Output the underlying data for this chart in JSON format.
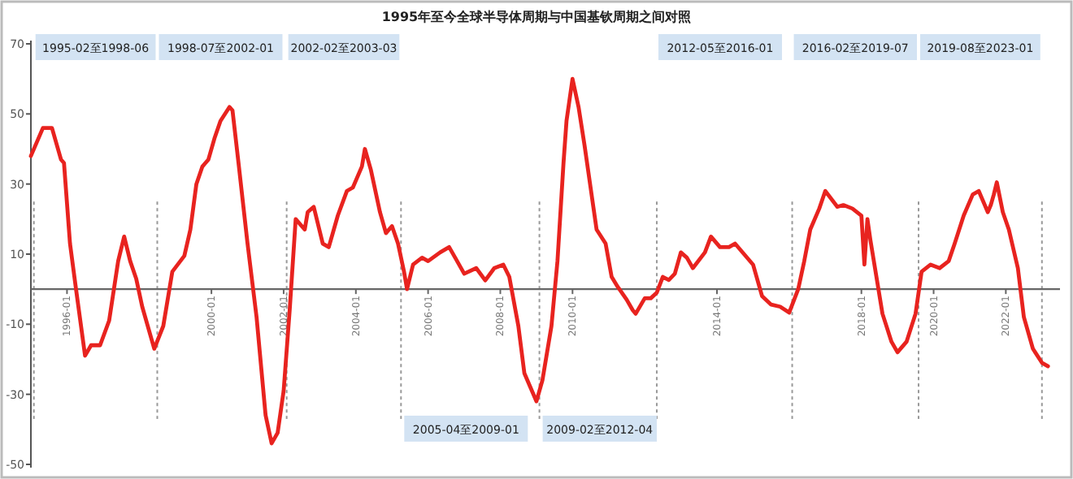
{
  "chart_data": {
    "type": "line",
    "title": "1995年至今全球半导体周期与中国基钦周期之间对照",
    "x": [
      "1995-01",
      "1995-05",
      "1995-08",
      "1995-11",
      "1995-12",
      "1996-02",
      "1996-04",
      "1996-07",
      "1996-09",
      "1996-12",
      "1997-03",
      "1997-06",
      "1997-08",
      "1997-10",
      "1997-12",
      "1998-02",
      "1998-06",
      "1998-09",
      "1998-12",
      "1999-04",
      "1999-06",
      "1999-08",
      "1999-10",
      "1999-12",
      "2000-02",
      "2000-04",
      "2000-07",
      "2000-08",
      "2000-10",
      "2001-01",
      "2001-04",
      "2001-07",
      "2001-09",
      "2001-11",
      "2002-01",
      "2002-03",
      "2002-05",
      "2002-08",
      "2002-09",
      "2002-11",
      "2003-02",
      "2003-04",
      "2003-07",
      "2003-10",
      "2003-12",
      "2004-03",
      "2004-04",
      "2004-06",
      "2004-09",
      "2004-11",
      "2005-01",
      "2005-03",
      "2005-05",
      "2005-06",
      "2005-08",
      "2005-11",
      "2006-01",
      "2006-05",
      "2006-08",
      "2006-10",
      "2007-01",
      "2007-05",
      "2007-08",
      "2007-11",
      "2008-02",
      "2008-04",
      "2008-07",
      "2008-09",
      "2009-01",
      "2009-03",
      "2009-06",
      "2009-08",
      "2009-10",
      "2009-11",
      "2010-01",
      "2010-03",
      "2010-05",
      "2010-07",
      "2010-09",
      "2010-12",
      "2011-02",
      "2011-04",
      "2011-07",
      "2011-09",
      "2011-10",
      "2012-01",
      "2012-03",
      "2012-05",
      "2012-07",
      "2012-09",
      "2012-11",
      "2013-01",
      "2013-03",
      "2013-05",
      "2013-09",
      "2013-11",
      "2014-02",
      "2014-05",
      "2014-07",
      "2014-10",
      "2015-01",
      "2015-04",
      "2015-07",
      "2015-10",
      "2016-01",
      "2016-04",
      "2016-06",
      "2016-08",
      "2016-11",
      "2017-01",
      "2017-05",
      "2017-07",
      "2017-10",
      "2018-01",
      "2018-02",
      "2018-03",
      "2018-04",
      "2018-06",
      "2018-08",
      "2018-11",
      "2019-01",
      "2019-04",
      "2019-07",
      "2019-09",
      "2019-12",
      "2020-03",
      "2020-06",
      "2020-08",
      "2020-11",
      "2021-02",
      "2021-04",
      "2021-07",
      "2021-08",
      "2021-09",
      "2021-10",
      "2021-12",
      "2022-02",
      "2022-05",
      "2022-07",
      "2022-10",
      "2023-01",
      "2023-03"
    ],
    "series": [
      {
        "color": "#e8231f",
        "values": [
          38,
          46,
          46,
          37,
          36,
          13,
          0,
          -19,
          -16,
          -16,
          -9,
          8,
          15,
          8,
          3,
          -5,
          -17,
          -10.5,
          5,
          9.5,
          17,
          30,
          35,
          37,
          43,
          48,
          52,
          51,
          36,
          13,
          -8,
          -36,
          -44,
          -41,
          -29,
          -6,
          20,
          17,
          22,
          23.5,
          13,
          12,
          21,
          28,
          29,
          35,
          40,
          34,
          22,
          16,
          18,
          13,
          5,
          0,
          7,
          9,
          8,
          10.5,
          12,
          9,
          4.4,
          6,
          2.5,
          6,
          7,
          3.5,
          -10.5,
          -24,
          -32,
          -26,
          -10.5,
          8,
          36,
          48,
          60,
          52,
          41,
          29,
          17,
          13,
          3.5,
          0.7,
          -3,
          -6,
          -7,
          -2.6,
          -2.6,
          -1,
          3.5,
          2.6,
          4.4,
          10.5,
          9,
          6,
          10.5,
          15,
          12,
          12,
          13,
          10,
          7,
          -2,
          -4.4,
          -5,
          -6.7,
          0,
          8,
          17,
          23,
          28,
          23.5,
          24,
          23,
          21,
          7,
          20,
          14,
          3.5,
          -7,
          -15,
          -18,
          -15,
          -7,
          5,
          7,
          6,
          8,
          13,
          21,
          27,
          28,
          22,
          24,
          27,
          30.5,
          22,
          17,
          6,
          -8,
          -17,
          -21,
          -22
        ]
      }
    ],
    "xlim": [
      "1995-01",
      "2023-07"
    ],
    "ylim": [
      -50,
      70
    ],
    "yticks": [
      70,
      50,
      30,
      10,
      -10,
      -30,
      -50
    ],
    "xticks": [
      "1996-01",
      "2000-01",
      "2002-01",
      "2004-01",
      "2006-01",
      "2008-01",
      "2010-01",
      "2014-01",
      "2018-01",
      "2020-01",
      "2022-01"
    ],
    "grid": false,
    "marker": "none",
    "line_style": "solid",
    "ref_lines": [
      {
        "axis": "x",
        "value": "1995-02",
        "line_style": "dashed",
        "color": "#999999"
      },
      {
        "axis": "x",
        "value": "1998-07",
        "line_style": "dashed",
        "color": "#999999"
      },
      {
        "axis": "x",
        "value": "2002-02",
        "line_style": "dashed",
        "color": "#999999"
      },
      {
        "axis": "x",
        "value": "2005-04",
        "line_style": "dashed",
        "color": "#999999"
      },
      {
        "axis": "x",
        "value": "2009-02",
        "line_style": "dashed",
        "color": "#999999"
      },
      {
        "axis": "x",
        "value": "2012-05",
        "line_style": "dashed",
        "color": "#999999"
      },
      {
        "axis": "x",
        "value": "2016-02",
        "line_style": "dashed",
        "color": "#999999"
      },
      {
        "axis": "x",
        "value": "2019-08",
        "line_style": "dashed",
        "color": "#999999"
      },
      {
        "axis": "x",
        "value": "2023-01",
        "line_style": "dashed",
        "color": "#999999"
      }
    ],
    "annotations": [
      "1995-02至1998-06",
      "1998-07至2002-01",
      "2002-02至2003-03",
      "2005-04至2009-01",
      "2009-02至2012-04",
      "2012-05至2016-01",
      "2016-02至2019-07",
      "2019-08至2023-01"
    ]
  }
}
